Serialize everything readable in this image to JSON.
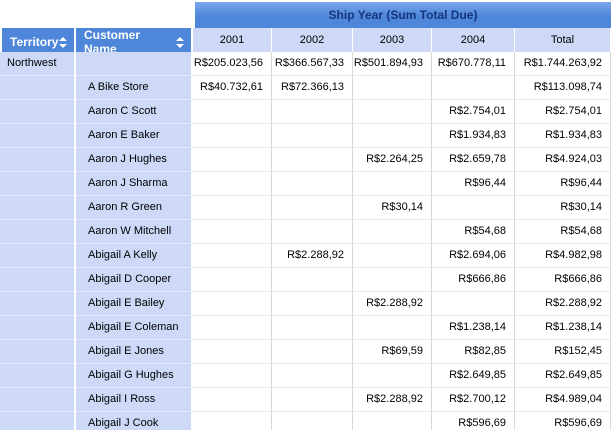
{
  "header": {
    "group_title": "Ship Year (Sum Total Due)",
    "territory_label": "Territory",
    "customer_label": "Customer Name",
    "columns": [
      "2001",
      "2002",
      "2003",
      "2004",
      "Total"
    ]
  },
  "colors": {
    "header_blue": "#4e86d9",
    "light_blue": "#cdd9f7",
    "group_header_text": "#16357e",
    "field_header_text": "#ffffff",
    "cell_text": "#000000"
  },
  "rows": [
    {
      "territory": "Northwest",
      "customer": "",
      "values": [
        "R$205.023,56",
        "R$366.567,33",
        "R$501.894,93",
        "R$670.778,11",
        "R$1.744.263,92"
      ]
    },
    {
      "territory": "",
      "customer": "A Bike Store",
      "values": [
        "R$40.732,61",
        "R$72.366,13",
        "",
        "",
        "R$113.098,74"
      ]
    },
    {
      "territory": "",
      "customer": "Aaron C Scott",
      "values": [
        "",
        "",
        "",
        "R$2.754,01",
        "R$2.754,01"
      ]
    },
    {
      "territory": "",
      "customer": "Aaron E Baker",
      "values": [
        "",
        "",
        "",
        "R$1.934,83",
        "R$1.934,83"
      ]
    },
    {
      "territory": "",
      "customer": "Aaron J Hughes",
      "values": [
        "",
        "",
        "R$2.264,25",
        "R$2.659,78",
        "R$4.924,03"
      ]
    },
    {
      "territory": "",
      "customer": "Aaron J Sharma",
      "values": [
        "",
        "",
        "",
        "R$96,44",
        "R$96,44"
      ]
    },
    {
      "territory": "",
      "customer": "Aaron R Green",
      "values": [
        "",
        "",
        "R$30,14",
        "",
        "R$30,14"
      ]
    },
    {
      "territory": "",
      "customer": "Aaron W Mitchell",
      "values": [
        "",
        "",
        "",
        "R$54,68",
        "R$54,68"
      ]
    },
    {
      "territory": "",
      "customer": "Abigail A Kelly",
      "values": [
        "",
        "R$2.288,92",
        "",
        "R$2.694,06",
        "R$4.982,98"
      ]
    },
    {
      "territory": "",
      "customer": "Abigail D Cooper",
      "values": [
        "",
        "",
        "",
        "R$666,86",
        "R$666,86"
      ]
    },
    {
      "territory": "",
      "customer": "Abigail E Bailey",
      "values": [
        "",
        "",
        "R$2.288,92",
        "",
        "R$2.288,92"
      ]
    },
    {
      "territory": "",
      "customer": "Abigail E Coleman",
      "values": [
        "",
        "",
        "",
        "R$1.238,14",
        "R$1.238,14"
      ]
    },
    {
      "territory": "",
      "customer": "Abigail E Jones",
      "values": [
        "",
        "",
        "R$69,59",
        "R$82,85",
        "R$152,45"
      ]
    },
    {
      "territory": "",
      "customer": "Abigail G Hughes",
      "values": [
        "",
        "",
        "",
        "R$2.649,85",
        "R$2.649,85"
      ]
    },
    {
      "territory": "",
      "customer": "Abigail I Ross",
      "values": [
        "",
        "",
        "R$2.288,92",
        "R$2.700,12",
        "R$4.989,04"
      ]
    },
    {
      "territory": "",
      "customer": "Abigail J Cook",
      "values": [
        "",
        "",
        "",
        "R$596,69",
        "R$596,69"
      ]
    }
  ]
}
